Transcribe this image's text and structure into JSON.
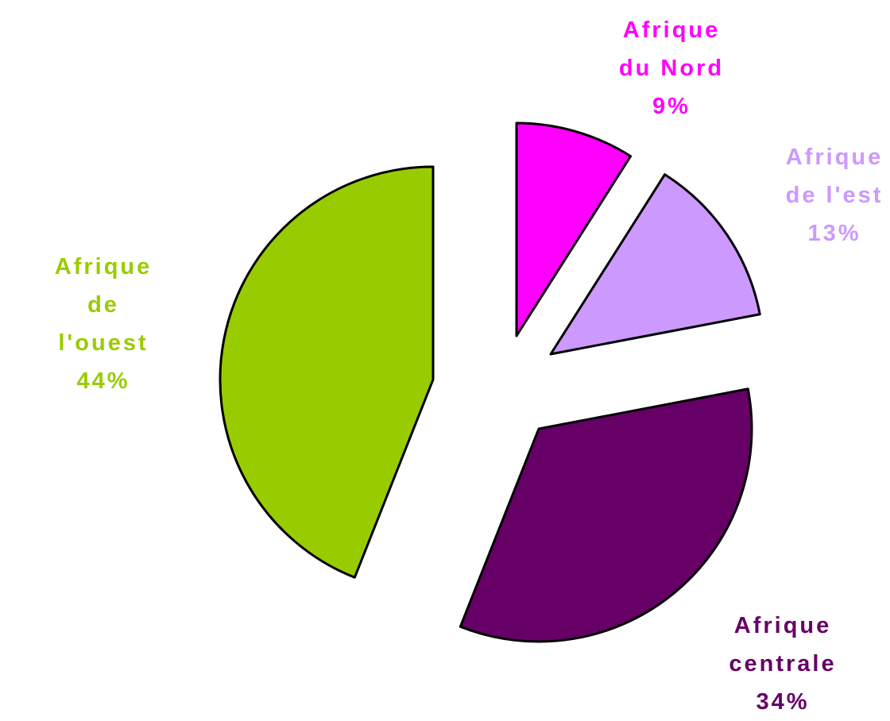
{
  "chart_data": {
    "type": "pie",
    "categories": [
      "Afrique du Nord",
      "Afrique de l'est",
      "Afrique centrale",
      "Afrique de l'ouest"
    ],
    "values": [
      9,
      13,
      34,
      44
    ],
    "value_labels": [
      "9%",
      "13%",
      "34%",
      "44%"
    ],
    "colors": [
      "#ff00ff",
      "#cc99ff",
      "#660066",
      "#99cc00"
    ]
  }
}
